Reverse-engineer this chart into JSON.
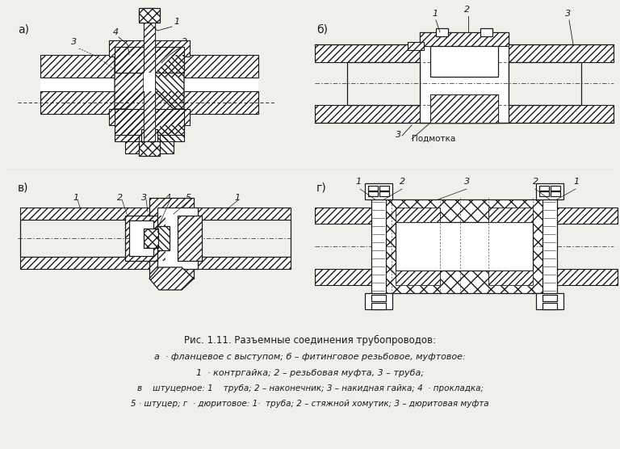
{
  "bg_color": "#f0f0eb",
  "line_color": "#1a1a1a",
  "title_line1": "Рис. 1.11. Разъемные соединения трубопроводов:",
  "title_line2": "а  · фланцевое с выступом; б – фитинговое резьбовое, муфтовое:",
  "title_line3": "1  · контргайка; 2 – резьбовая муфта, 3 – труба;",
  "title_line4": "в    штуцерное: 1    труба; 2 – наконечник; 3 – накидная гайка; 4  · прокладка;",
  "title_line5": "5 · штуцер; г  · дюритовое: 1·  труба; 2 – стяжной хомутик; 3 – дюритовая муфта",
  "label_a": "а)",
  "label_b": "б)",
  "label_v": "в)",
  "label_g": "г)"
}
